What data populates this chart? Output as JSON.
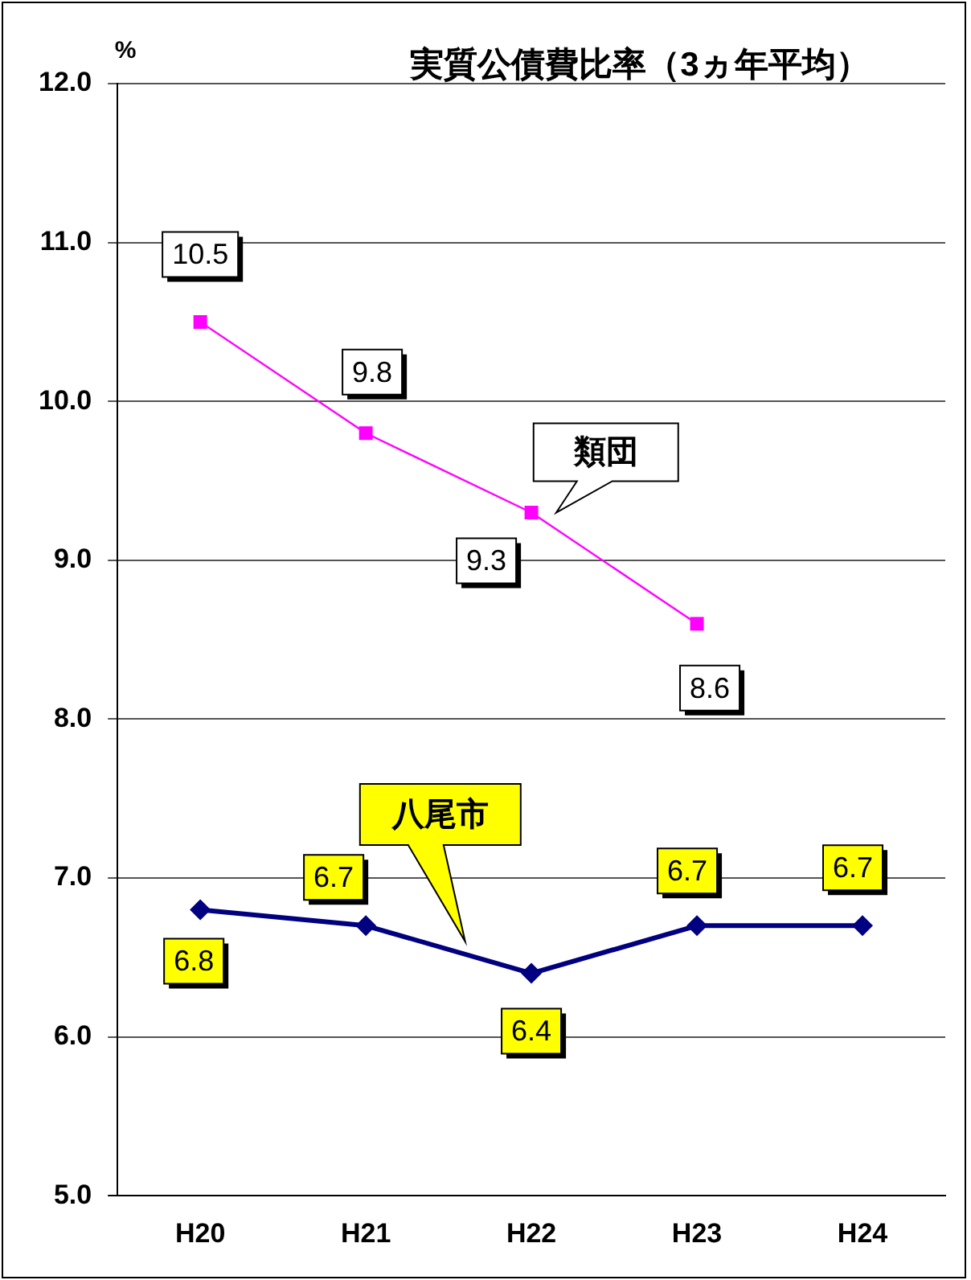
{
  "chart_data": {
    "type": "line",
    "title": "実質公債費比率（3ヵ年平均）",
    "ylabel": "%",
    "categories": [
      "H20",
      "H21",
      "H22",
      "H23",
      "H24"
    ],
    "series": [
      {
        "name": "類団",
        "color": "#ff00ff",
        "values": [
          10.5,
          9.8,
          9.3,
          8.6,
          null
        ],
        "marker": "square"
      },
      {
        "name": "八尾市",
        "color": "#000080",
        "values": [
          6.8,
          6.7,
          6.4,
          6.7,
          6.7
        ],
        "marker": "diamond"
      }
    ],
    "ylim": [
      5,
      12
    ],
    "yticks": [
      {
        "value": 5,
        "label": "5.0"
      },
      {
        "value": 6,
        "label": "6.0"
      },
      {
        "value": 7,
        "label": "7.0"
      },
      {
        "value": 8,
        "label": "8.0"
      },
      {
        "value": 9,
        "label": "9.0"
      },
      {
        "value": 10,
        "label": "10.0"
      },
      {
        "value": 11,
        "label": "11.0"
      },
      {
        "value": 12,
        "label": "12.0"
      }
    ],
    "grid": "y",
    "legend": false,
    "data_labels": true,
    "line_style": "solid"
  }
}
